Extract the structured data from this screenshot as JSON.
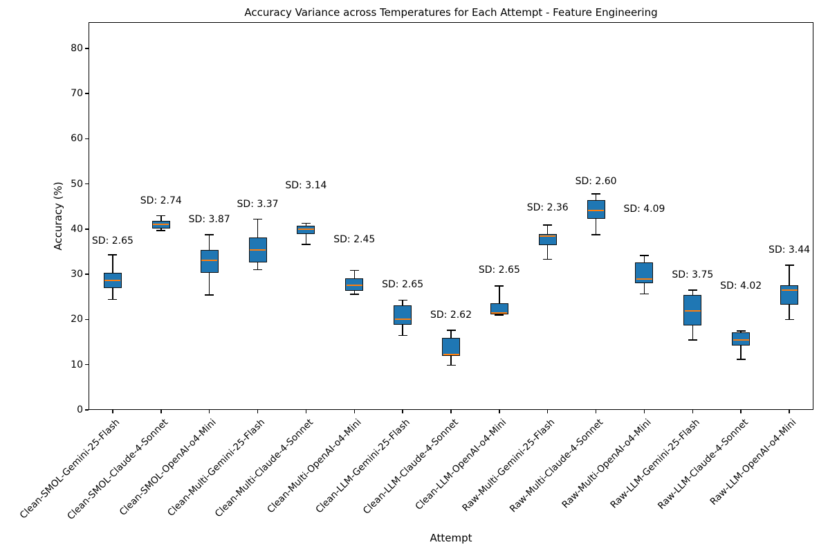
{
  "chart_data": {
    "type": "boxplot",
    "title": "Accuracy Variance across Temperatures for Each Attempt - Feature Engineering",
    "xlabel": "Attempt",
    "ylabel": "Accuracy (%)",
    "ylim": [
      0,
      85.8
    ],
    "yticks": [
      0,
      10,
      20,
      30,
      40,
      50,
      60,
      70,
      80
    ],
    "grid": false,
    "legend": "none",
    "colors": {
      "box_fill": "#1f77b4",
      "box_edge": "#0d0d0d",
      "median": "#ff7f0e",
      "whisker": "#000000",
      "background": "#ffffff"
    },
    "sd_label_prefix": "SD: ",
    "series": [
      {
        "name": "Clean-SMOL-Gemini-25-Flash",
        "sd": "2.65",
        "low": 24.4,
        "q1": 27.0,
        "median": 28.7,
        "q3": 30.4,
        "high": 34.3,
        "sd_y": 37.4
      },
      {
        "name": "Clean-SMOL-Claude-4-Sonnet",
        "sd": "2.74",
        "low": 39.7,
        "q1": 40.2,
        "median": 41.0,
        "q3": 41.8,
        "high": 43.0,
        "sd_y": 46.2
      },
      {
        "name": "Clean-SMOL-OpenAI-o4-Mini",
        "sd": "3.87",
        "low": 25.4,
        "q1": 30.4,
        "median": 33.1,
        "q3": 35.4,
        "high": 38.8,
        "sd_y": 42.2
      },
      {
        "name": "Clean-Multi-Gemini-25-Flash",
        "sd": "3.37",
        "low": 31.0,
        "q1": 32.6,
        "median": 35.4,
        "q3": 38.1,
        "high": 42.2,
        "sd_y": 45.5
      },
      {
        "name": "Clean-Multi-Claude-4-Sonnet",
        "sd": "3.14",
        "low": 36.6,
        "q1": 38.9,
        "median": 40.0,
        "q3": 40.8,
        "high": 41.3,
        "sd_y": 49.6
      },
      {
        "name": "Clean-Multi-OpenAI-o4-Mini",
        "sd": "2.45",
        "low": 25.6,
        "q1": 26.3,
        "median": 27.6,
        "q3": 29.1,
        "high": 30.9,
        "sd_y": 37.7
      },
      {
        "name": "Clean-LLM-Gemini-25-Flash",
        "sd": "2.65",
        "low": 16.5,
        "q1": 18.9,
        "median": 20.0,
        "q3": 23.2,
        "high": 24.3,
        "sd_y": 27.7
      },
      {
        "name": "Clean-LLM-Claude-4-Sonnet",
        "sd": "2.62",
        "low": 9.9,
        "q1": 12.0,
        "median": 12.3,
        "q3": 15.9,
        "high": 17.6,
        "sd_y": 21.0
      },
      {
        "name": "Clean-LLM-OpenAI-o4-Mini",
        "sd": "2.65",
        "low": 21.0,
        "q1": 21.2,
        "median": 21.4,
        "q3": 23.6,
        "high": 27.4,
        "sd_y": 31.0
      },
      {
        "name": "Raw-Multi-Gemini-25-Flash",
        "sd": "2.36",
        "low": 33.3,
        "q1": 36.4,
        "median": 38.4,
        "q3": 38.9,
        "high": 40.9,
        "sd_y": 44.7
      },
      {
        "name": "Raw-Multi-Claude-4-Sonnet",
        "sd": "2.60",
        "low": 38.8,
        "q1": 42.3,
        "median": 44.2,
        "q3": 46.5,
        "high": 47.8,
        "sd_y": 50.5
      },
      {
        "name": "Raw-Multi-OpenAI-o4-Mini",
        "sd": "4.09",
        "low": 25.7,
        "q1": 28.1,
        "median": 29.0,
        "q3": 32.6,
        "high": 34.2,
        "sd_y": 44.4
      },
      {
        "name": "Raw-LLM-Gemini-25-Flash",
        "sd": "3.75",
        "low": 15.5,
        "q1": 18.7,
        "median": 21.9,
        "q3": 25.4,
        "high": 26.5,
        "sd_y": 29.9
      },
      {
        "name": "Raw-LLM-Claude-4-Sonnet",
        "sd": "4.02",
        "low": 11.2,
        "q1": 14.2,
        "median": 15.5,
        "q3": 17.2,
        "high": 17.5,
        "sd_y": 27.5
      },
      {
        "name": "Raw-LLM-OpenAI-o4-Mini",
        "sd": "3.44",
        "low": 20.0,
        "q1": 23.3,
        "median": 26.5,
        "q3": 27.6,
        "high": 32.0,
        "sd_y": 35.4
      }
    ]
  }
}
